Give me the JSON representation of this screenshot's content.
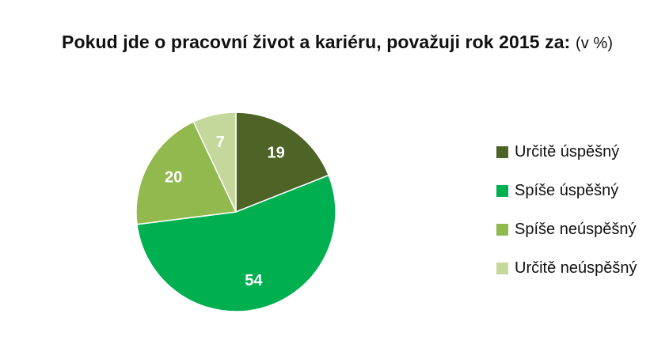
{
  "title": {
    "main": "Pokud jde o pracovní život a kariéru, považuji rok 2015 za:",
    "unit": "(v %)"
  },
  "chart_data": {
    "type": "pie",
    "title": "Pokud jde o pracovní život a kariéru, považuji rok 2015 za: (v %)",
    "categories": [
      "Určitě úspěšný",
      "Spíše úspěšný",
      "Spíše neúspěšný",
      "Určitě neúspěšný"
    ],
    "values": [
      19,
      54,
      20,
      7
    ],
    "colors": [
      "#4e6426",
      "#00b050",
      "#92b94e",
      "#c4d89c"
    ],
    "legend_position": "right"
  }
}
